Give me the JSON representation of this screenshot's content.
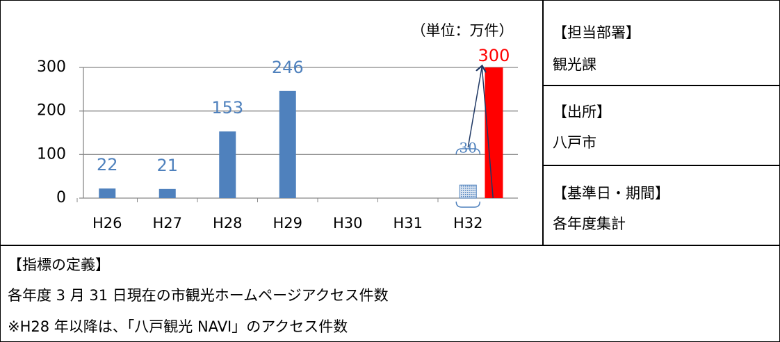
{
  "chart_data": {
    "type": "bar",
    "unit": "（単位：万件）",
    "categories": [
      "H26",
      "H27",
      "H28",
      "H29",
      "H30",
      "H31",
      "H32"
    ],
    "series": [
      {
        "color": "#4f81bd",
        "values": [
          22,
          21,
          153,
          246,
          null,
          null,
          30
        ]
      },
      {
        "color": "#ff0000",
        "values": [
          null,
          null,
          null,
          null,
          null,
          null,
          300
        ]
      }
    ],
    "ylim": [
      0,
      300
    ],
    "yticks": [
      0,
      100,
      200,
      300
    ],
    "grid": true
  },
  "info": [
    {
      "heading": "【担当部署】",
      "text": "観光課"
    },
    {
      "heading": "【出所】",
      "text": "八戸市"
    },
    {
      "heading": "【基準日・期間】",
      "text": "各年度集計"
    }
  ],
  "definition": {
    "heading": "【指標の定義】",
    "lines": [
      "各年度 3 月 31 日現在の市観光ホームページアクセス件数",
      "※H28 年以降は、「八戸観光 NAVI」のアクセス件数"
    ]
  }
}
